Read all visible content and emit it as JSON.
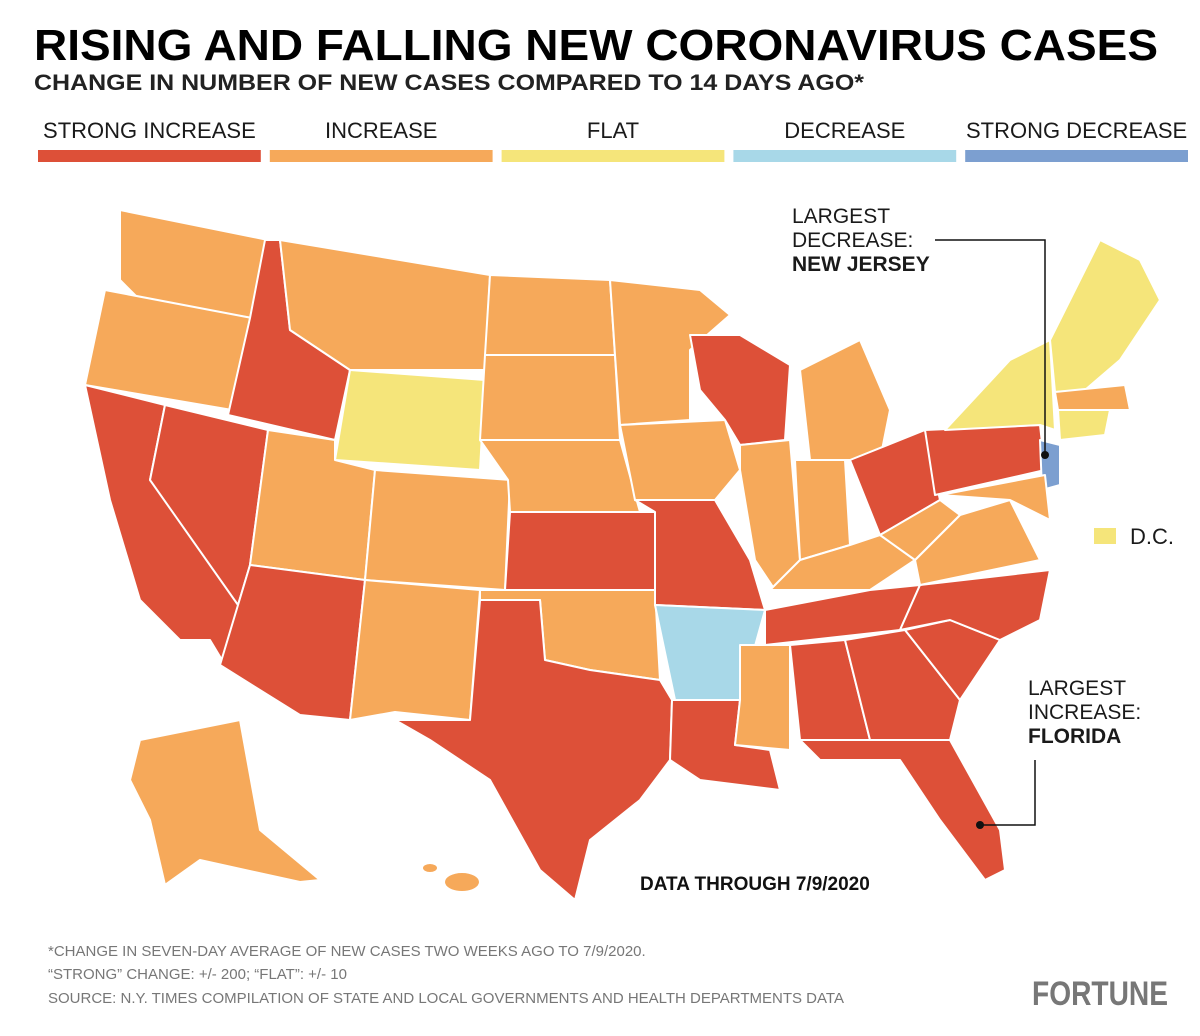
{
  "title": "RISING AND FALLING NEW CORONAVIRUS CASES",
  "subtitle": "CHANGE IN NUMBER OF NEW CASES COMPARED TO 14 DAYS AGO*",
  "legend": [
    {
      "label": "STRONG INCREASE",
      "color": "#dd5038"
    },
    {
      "label": "INCREASE",
      "color": "#f6a95a"
    },
    {
      "label": "FLAT",
      "color": "#f5e57a"
    },
    {
      "label": "DECREASE",
      "color": "#a8d8e8"
    },
    {
      "label": "STRONG DECREASE",
      "color": "#7c9fd0"
    }
  ],
  "annotations": {
    "decrease_heading": "LARGEST DECREASE:",
    "decrease_state": "NEW JERSEY",
    "increase_heading": "LARGEST INCREASE:",
    "increase_state": "FLORIDA",
    "dc": "D.C.",
    "data_through": "DATA THROUGH 7/9/2020"
  },
  "footnotes": [
    "*CHANGE IN SEVEN-DAY AVERAGE OF NEW CASES TWO WEEKS AGO TO 7/9/2020.",
    "“STRONG” CHANGE: +/- 200; “FLAT”: +/- 10",
    "SOURCE: N.Y. TIMES COMPILATION OF STATE AND LOCAL GOVERNMENTS AND HEALTH DEPARTMENTS DATA"
  ],
  "brand": "FORTUNE"
}
